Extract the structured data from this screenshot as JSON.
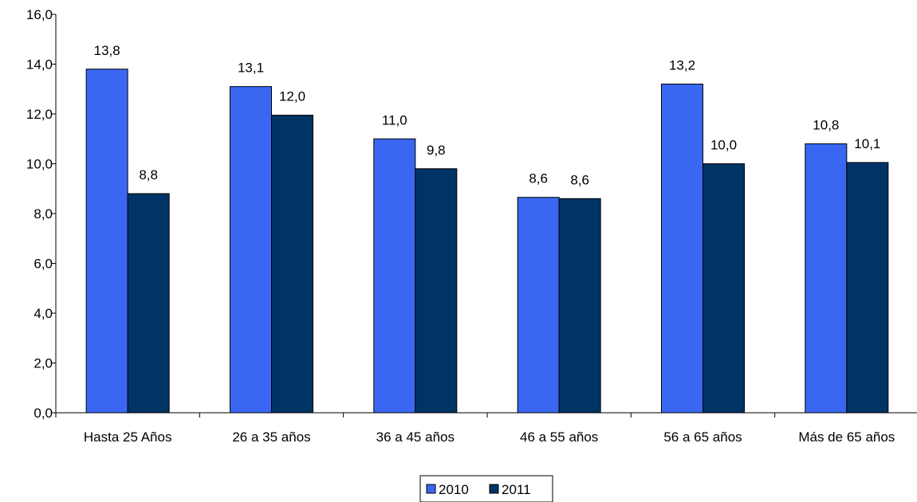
{
  "chart_data": {
    "type": "bar",
    "categories": [
      "Hasta 25 Años",
      "26 a 35 años",
      "36 a 45 años",
      "46 a 55 años",
      "56 a 65 años",
      "Más de 65 años"
    ],
    "series": [
      {
        "name": "2010",
        "values": [
          13.8,
          13.1,
          11.0,
          8.65,
          13.2,
          10.8
        ],
        "labels": [
          "13,8",
          "13,1",
          "11,0",
          "8,6",
          "13,2",
          "10,8"
        ],
        "color": "#3A67F2"
      },
      {
        "name": "2011",
        "values": [
          8.8,
          11.95,
          9.8,
          8.6,
          10.0,
          10.05
        ],
        "labels": [
          "8,8",
          "12,0",
          "9,8",
          "8,6",
          "10,0",
          "10,1"
        ],
        "color": "#003366"
      }
    ],
    "ylim": [
      0,
      16
    ],
    "yticks": [
      0,
      2,
      4,
      6,
      8,
      10,
      12,
      14,
      16
    ],
    "ytick_labels": [
      "0,0",
      "2,0",
      "4,0",
      "6,0",
      "8,0",
      "10,0",
      "12,0",
      "14,0",
      "16,0"
    ],
    "title": "",
    "xlabel": "",
    "ylabel": "",
    "grid": false,
    "legend_position": "bottom-center"
  }
}
